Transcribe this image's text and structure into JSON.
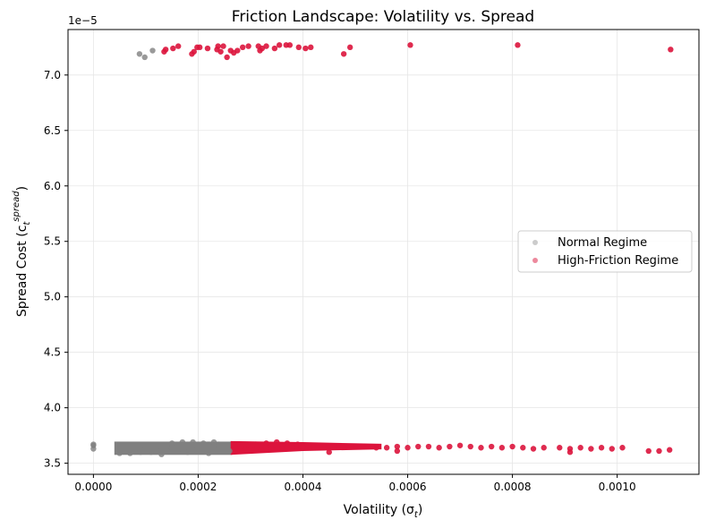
{
  "chart_data": {
    "type": "scatter",
    "title": "Friction Landscape: Volatility vs. Spread",
    "xlabel": "Volatility (σ",
    "xlabel_sub": "t",
    "xlabel_end": ")",
    "ylabel": "Spread Cost (c",
    "ylabel_sub": "t",
    "ylabel_sup": "spread",
    "ylabel_end": ")",
    "offset_text": "1e−5",
    "xlim": [
      -4.85e-05,
      0.0011561
    ],
    "ylim": [
      3.4,
      7.41
    ],
    "xticks": [
      0.0,
      0.0002,
      0.0004,
      0.0006,
      0.0008,
      0.001
    ],
    "xtick_labels": [
      "0.0000",
      "0.0002",
      "0.0004",
      "0.0006",
      "0.0008",
      "0.0010"
    ],
    "yticks": [
      3.5,
      4.0,
      4.5,
      5.0,
      5.5,
      6.0,
      6.5,
      7.0
    ],
    "ytick_labels": [
      "3.5",
      "4.0",
      "4.5",
      "5.0",
      "5.5",
      "6.0",
      "6.5",
      "7.0"
    ],
    "grid": true,
    "legend_position": "center-right",
    "colors": {
      "normal": "#808080",
      "high": "#dc143c"
    },
    "series": [
      {
        "name": "Normal Regime",
        "color": "#808080",
        "points": [
          [
            0.0,
            3.63
          ],
          [
            0.0,
            3.66
          ],
          [
            0.0,
            3.67
          ],
          [
            8.8e-05,
            7.19
          ],
          [
            9.8e-05,
            7.16
          ],
          [
            0.000113,
            7.22
          ],
          [
            5e-05,
            3.59
          ],
          [
            7e-05,
            3.59
          ],
          [
            9e-05,
            3.6
          ],
          [
            0.00011,
            3.6
          ],
          [
            0.00013,
            3.61
          ],
          [
            0.00015,
            3.61
          ],
          [
            0.00017,
            3.62
          ],
          [
            0.00019,
            3.62
          ],
          [
            0.00021,
            3.62
          ],
          [
            0.00023,
            3.63
          ],
          [
            0.00025,
            3.63
          ],
          [
            8e-05,
            3.63
          ],
          [
            0.0001,
            3.64
          ],
          [
            0.00012,
            3.64
          ],
          [
            0.00014,
            3.65
          ],
          [
            0.00016,
            3.65
          ],
          [
            0.00018,
            3.66
          ],
          [
            0.0002,
            3.66
          ],
          [
            0.00022,
            3.67
          ],
          [
            0.00024,
            3.67
          ],
          [
            0.00015,
            3.68
          ],
          [
            0.00017,
            3.69
          ],
          [
            0.00019,
            3.69
          ],
          [
            0.00021,
            3.68
          ],
          [
            0.00023,
            3.69
          ],
          [
            9e-05,
            3.62
          ],
          [
            0.00013,
            3.58
          ],
          [
            0.00018,
            3.6
          ],
          [
            0.00022,
            3.59
          ],
          [
            0.00026,
            3.61
          ]
        ]
      },
      {
        "name": "High-Friction Regime",
        "color": "#dc143c",
        "points": [
          [
            0.000135,
            7.21
          ],
          [
            0.000138,
            7.23
          ],
          [
            0.000152,
            7.24
          ],
          [
            0.000162,
            7.26
          ],
          [
            0.000188,
            7.19
          ],
          [
            0.000192,
            7.21
          ],
          [
            0.000198,
            7.25
          ],
          [
            0.000203,
            7.25
          ],
          [
            0.000218,
            7.24
          ],
          [
            0.000236,
            7.23
          ],
          [
            0.000238,
            7.26
          ],
          [
            0.000243,
            7.21
          ],
          [
            0.000248,
            7.26
          ],
          [
            0.000255,
            7.16
          ],
          [
            0.000262,
            7.22
          ],
          [
            0.000268,
            7.2
          ],
          [
            0.000275,
            7.22
          ],
          [
            0.000285,
            7.25
          ],
          [
            0.000296,
            7.26
          ],
          [
            0.000315,
            7.26
          ],
          [
            0.000318,
            7.22
          ],
          [
            0.000322,
            7.24
          ],
          [
            0.00033,
            7.26
          ],
          [
            0.000346,
            7.24
          ],
          [
            0.000355,
            7.27
          ],
          [
            0.000368,
            7.27
          ],
          [
            0.000375,
            7.27
          ],
          [
            0.000392,
            7.25
          ],
          [
            0.000405,
            7.24
          ],
          [
            0.000415,
            7.25
          ],
          [
            0.000478,
            7.19
          ],
          [
            0.00049,
            7.25
          ],
          [
            0.000605,
            7.27
          ],
          [
            0.00081,
            7.27
          ],
          [
            0.001102,
            7.23
          ],
          [
            0.00028,
            3.61
          ],
          [
            0.0003,
            3.62
          ],
          [
            0.00032,
            3.62
          ],
          [
            0.00034,
            3.63
          ],
          [
            0.00036,
            3.63
          ],
          [
            0.00038,
            3.64
          ],
          [
            0.0004,
            3.64
          ],
          [
            0.00042,
            3.64
          ],
          [
            0.00044,
            3.65
          ],
          [
            0.00046,
            3.65
          ],
          [
            0.00048,
            3.65
          ],
          [
            0.0005,
            3.65
          ],
          [
            0.00052,
            3.65
          ],
          [
            0.00054,
            3.64
          ],
          [
            0.00056,
            3.64
          ],
          [
            0.00058,
            3.65
          ],
          [
            0.0006,
            3.64
          ],
          [
            0.00062,
            3.65
          ],
          [
            0.00064,
            3.65
          ],
          [
            0.00066,
            3.64
          ],
          [
            0.00068,
            3.65
          ],
          [
            0.0007,
            3.66
          ],
          [
            0.00072,
            3.65
          ],
          [
            0.00074,
            3.64
          ],
          [
            0.00076,
            3.65
          ],
          [
            0.00078,
            3.64
          ],
          [
            0.0008,
            3.65
          ],
          [
            0.00082,
            3.64
          ],
          [
            0.00084,
            3.63
          ],
          [
            0.00086,
            3.64
          ],
          [
            0.00089,
            3.64
          ],
          [
            0.00091,
            3.63
          ],
          [
            0.00093,
            3.64
          ],
          [
            0.00095,
            3.63
          ],
          [
            0.00097,
            3.64
          ],
          [
            0.00099,
            3.63
          ],
          [
            0.00101,
            3.64
          ],
          [
            0.00106,
            3.61
          ],
          [
            0.00108,
            3.61
          ],
          [
            0.0011,
            3.62
          ],
          [
            0.00027,
            3.66
          ],
          [
            0.00029,
            3.67
          ],
          [
            0.00031,
            3.67
          ],
          [
            0.00033,
            3.68
          ],
          [
            0.00035,
            3.69
          ],
          [
            0.00037,
            3.68
          ],
          [
            0.00039,
            3.67
          ],
          [
            0.00045,
            3.6
          ],
          [
            0.00058,
            3.61
          ],
          [
            0.00091,
            3.6
          ]
        ]
      }
    ]
  }
}
